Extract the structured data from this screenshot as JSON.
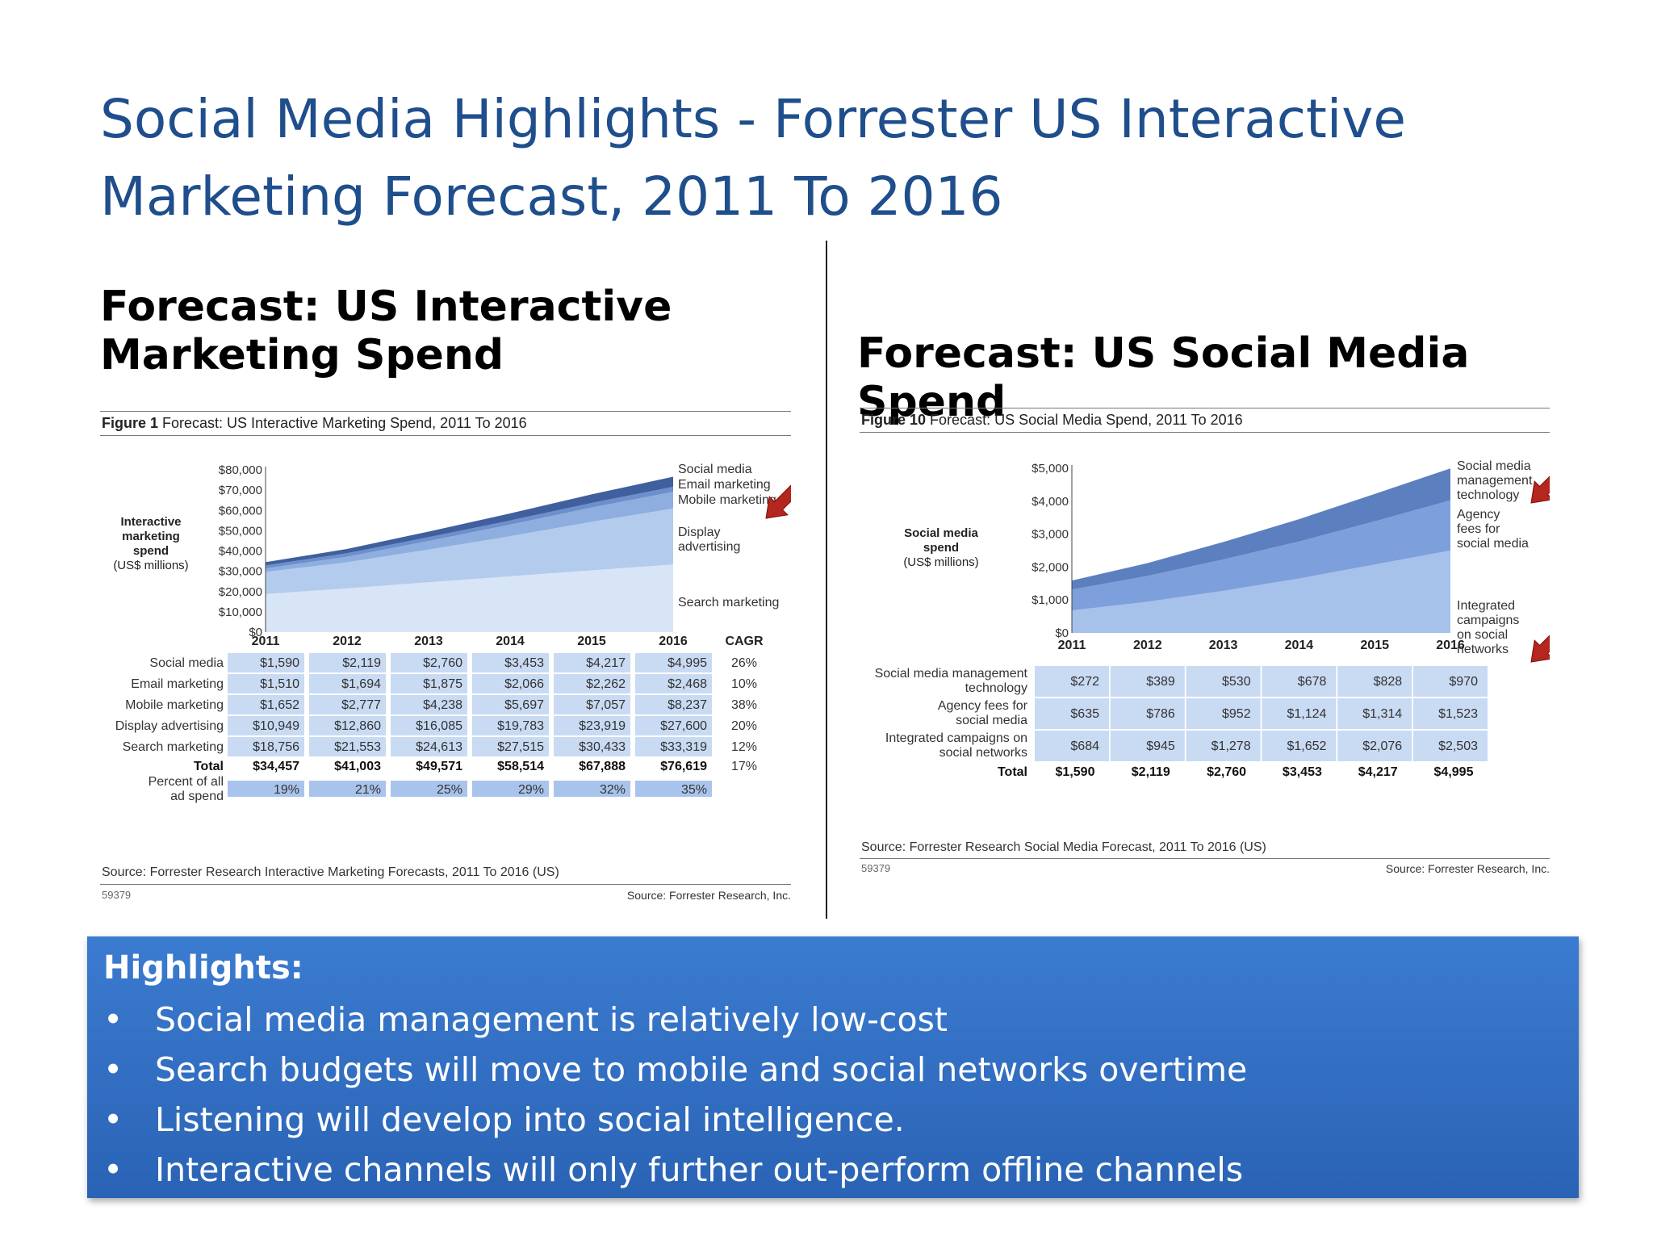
{
  "slide": {
    "title": "Social Media Highlights  - Forrester US Interactive Marketing Forecast, 2011 To 2016"
  },
  "left": {
    "section_title": "Forecast: US Interactive Marketing Spend",
    "figure_label": "Figure 1",
    "figure_caption": "Forecast: US Interactive Marketing Spend, 2011 To 2016",
    "source": "Source: Forrester Research Interactive Marketing Forecasts, 2011 To 2016 (US)",
    "figure_id": "59379",
    "source_right": "Source: Forrester Research, Inc."
  },
  "right": {
    "section_title": "Forecast: US Social Media Spend",
    "figure_label": "Figure 10",
    "figure_caption": "Forecast: US Social Media Spend, 2011 To 2016",
    "source": "Source: Forrester Research Social Media Forecast, 2011 To 2016 (US)",
    "figure_id": "59379",
    "source_right": "Source: Forrester Research, Inc."
  },
  "highlights": {
    "heading": "Highlights:",
    "bullet": "•",
    "items": [
      "Social media management is relatively low-cost",
      "Search budgets will move to mobile and social networks overtime",
      "Listening will develop into social intelligence.",
      "Interactive channels will only further out-perform offline channels"
    ]
  },
  "chart_data": [
    {
      "type": "area",
      "stacked": true,
      "title": "Forecast: US Interactive Marketing Spend, 2011 To 2016",
      "ylabel_lines": [
        "Interactive",
        "marketing",
        "spend",
        "(US$ millions)"
      ],
      "ylim": [
        0,
        80000
      ],
      "yticks": [
        "$0",
        "$10,000",
        "$20,000",
        "$30,000",
        "$40,000",
        "$50,000",
        "$60,000",
        "$70,000",
        "$80,000"
      ],
      "x": [
        "2011",
        "2012",
        "2013",
        "2014",
        "2015",
        "2016"
      ],
      "series": [
        {
          "name": "Search marketing",
          "values": [
            18756,
            21553,
            24613,
            27515,
            30433,
            33319
          ],
          "color": "#d8e5f6",
          "display": [
            "$18,756",
            "$21,553",
            "$24,613",
            "$27,515",
            "$30,433",
            "$33,319"
          ],
          "cagr": "12%"
        },
        {
          "name": "Display advertising",
          "label_lines": [
            "Display",
            "advertising"
          ],
          "values": [
            10949,
            12860,
            16085,
            19783,
            23919,
            27600
          ],
          "color": "#b3cbec",
          "display": [
            "$10,949",
            "$12,860",
            "$16,085",
            "$19,783",
            "$23,919",
            "$27,600"
          ],
          "cagr": "20%"
        },
        {
          "name": "Mobile marketing",
          "values": [
            1652,
            2777,
            4238,
            5697,
            7057,
            8237
          ],
          "color": "#8eaee0",
          "display": [
            "$1,652",
            "$2,777",
            "$4,238",
            "$5,697",
            "$7,057",
            "$8,237"
          ],
          "cagr": "38%"
        },
        {
          "name": "Email marketing",
          "values": [
            1510,
            1694,
            1875,
            2066,
            2262,
            2468
          ],
          "color": "#6d8fcc",
          "display": [
            "$1,510",
            "$1,694",
            "$1,875",
            "$2,066",
            "$2,262",
            "$2,468"
          ],
          "cagr": "10%"
        },
        {
          "name": "Social media",
          "values": [
            1590,
            2119,
            2760,
            3453,
            4217,
            4995
          ],
          "color": "#3f5f9e",
          "display": [
            "$1,590",
            "$2,119",
            "$2,760",
            "$3,453",
            "$4,217",
            "$4,995"
          ],
          "cagr": "26%"
        }
      ],
      "table": {
        "cagr_header": "CAGR",
        "row_order": [
          "Social media",
          "Email marketing",
          "Mobile marketing",
          "Display advertising",
          "Search marketing"
        ],
        "total_label": "Total",
        "totals": [
          "$34,457",
          "$41,003",
          "$49,571",
          "$58,514",
          "$67,888",
          "$76,619"
        ],
        "total_cagr": "17%",
        "percent_label_lines": [
          "Percent of all",
          "ad spend"
        ],
        "percent": [
          "19%",
          "21%",
          "25%",
          "29%",
          "32%",
          "35%"
        ]
      },
      "annotation_arrows": [
        "Mobile marketing"
      ]
    },
    {
      "type": "area",
      "stacked": true,
      "title": "Forecast: US Social Media Spend, 2011 To 2016",
      "ylabel_lines": [
        "Social media",
        "spend",
        "(US$ millions)"
      ],
      "ylim": [
        0,
        5000
      ],
      "yticks": [
        "$0",
        "$1,000",
        "$2,000",
        "$3,000",
        "$4,000",
        "$5,000"
      ],
      "x": [
        "2011",
        "2012",
        "2013",
        "2014",
        "2015",
        "2016"
      ],
      "series": [
        {
          "name": "Integrated campaigns on social networks",
          "label_lines": [
            "Integrated",
            "campaigns",
            "on social",
            "networks"
          ],
          "table_label_lines": [
            "Integrated campaigns on",
            "social networks"
          ],
          "values": [
            684,
            945,
            1278,
            1652,
            2076,
            2503
          ],
          "color": "#a7c2ea",
          "display": [
            "$684",
            "$945",
            "$1,278",
            "$1,652",
            "$2,076",
            "$2,503"
          ]
        },
        {
          "name": "Agency fees for social media",
          "label_lines": [
            "Agency",
            "fees for",
            "social media"
          ],
          "table_label_lines": [
            "Agency fees for",
            "social media"
          ],
          "values": [
            635,
            786,
            952,
            1124,
            1314,
            1523
          ],
          "color": "#7d9fdb",
          "display": [
            "$635",
            "$786",
            "$952",
            "$1,124",
            "$1,314",
            "$1,523"
          ]
        },
        {
          "name": "Social media management technology",
          "label_lines": [
            "Social media",
            "management",
            "technology"
          ],
          "table_label_lines": [
            "Social media management",
            "technology"
          ],
          "values": [
            272,
            389,
            530,
            678,
            828,
            970
          ],
          "color": "#5c7fc0",
          "display": [
            "$272",
            "$389",
            "$530",
            "$678",
            "$828",
            "$970"
          ]
        }
      ],
      "table": {
        "row_order": [
          "Social media management technology",
          "Agency fees for social media",
          "Integrated campaigns on social networks"
        ],
        "total_label": "Total",
        "totals": [
          "$1,590",
          "$2,119",
          "$2,760",
          "$3,453",
          "$4,217",
          "$4,995"
        ]
      },
      "annotation_arrows": [
        "Social media management technology",
        "Integrated campaigns on social networks"
      ]
    }
  ]
}
